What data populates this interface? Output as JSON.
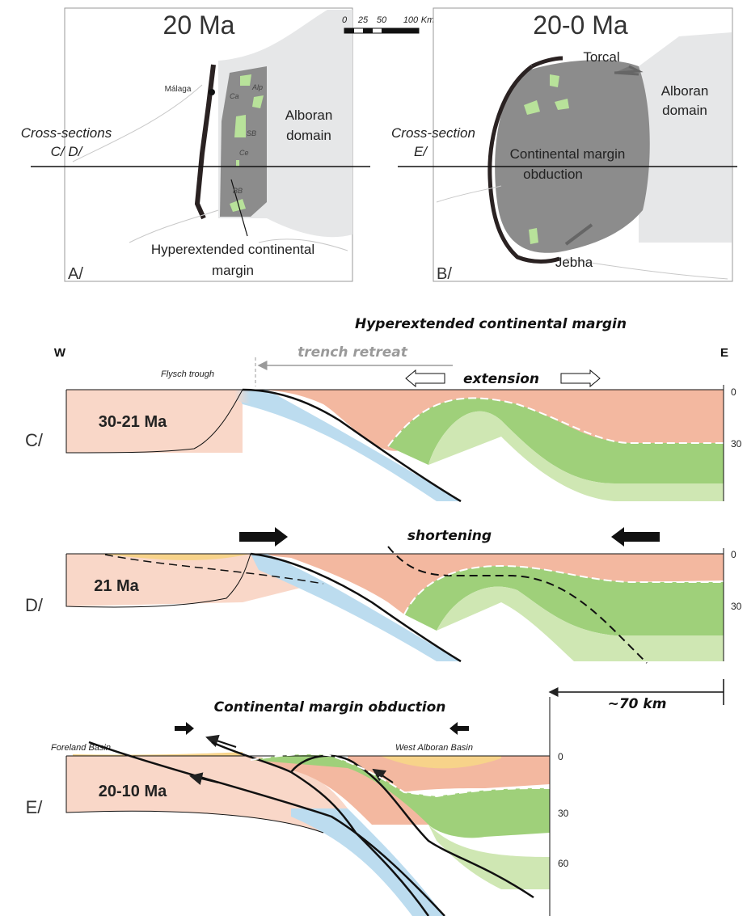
{
  "map_a": {
    "title": "20 Ma",
    "panel": "A/",
    "city": "Málaga",
    "domain_line1": "Alboran",
    "domain_line2": "domain",
    "cross_line1": "Cross-sections",
    "cross_line2": "C/  D/",
    "margin_line1": "Hyperextended  continental",
    "margin_line2": "margin",
    "units": [
      "Ca",
      "Alp",
      "SB",
      "Ce",
      "BB"
    ]
  },
  "scale_bar": {
    "ticks": [
      "0",
      "25",
      "50",
      "100"
    ],
    "unit": "Km"
  },
  "map_b": {
    "title": "20-0 Ma",
    "panel": "B/",
    "torcal": "Torcal",
    "jebha": "Jebha",
    "domain_line1": "Alboran",
    "domain_line2": "domain",
    "cross_line1": "Cross-section",
    "cross_line2": "E/",
    "obd_line1": "Continental margin",
    "obd_line2": "obduction"
  },
  "section_c": {
    "header": "Hyperextended continental margin",
    "west": "W",
    "east": "E",
    "trench": "trench retreat",
    "flysch": "Flysch trough",
    "extension": "extension",
    "age": "30-21 Ma",
    "label": "C/",
    "depths": [
      "0",
      "30"
    ]
  },
  "section_d": {
    "shortening": "shortening",
    "age": "21 Ma",
    "label": "D/",
    "depths": [
      "0",
      "30"
    ]
  },
  "section_e": {
    "header": "Continental margin obduction",
    "distance": "~70 km",
    "foreland": "Foreland Basin",
    "west_alboran": "West Alboran Basin",
    "age": "20-10 Ma",
    "label": "E/",
    "depths": [
      "0",
      "30",
      "60"
    ]
  },
  "colors": {
    "crust": "#f3b8a0",
    "crust_light": "#f9d7c8",
    "mantle_green": "#9fd07a",
    "mantle_light": "#cfe7b3",
    "slab": "#bcdcef",
    "sediment": "#f7d38a",
    "domain_dark": "#8a8a8a",
    "domain_light": "#e6e7e8"
  }
}
